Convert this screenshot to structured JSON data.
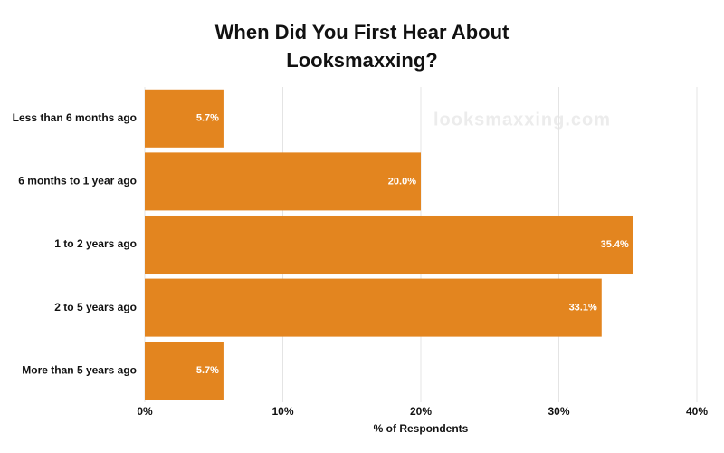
{
  "chart_data": {
    "type": "bar",
    "orientation": "horizontal",
    "title": "When Did You First Hear About Looksmaxxing?",
    "watermark": "looksmaxxing.com",
    "xlabel": "% of Respondents",
    "categories": [
      "Less than 6 months ago",
      "6 months to 1 year ago",
      "1 to 2 years ago",
      "2 to 5 years ago",
      "More than 5 years ago"
    ],
    "values": [
      5.7,
      20.0,
      35.4,
      33.1,
      5.7
    ],
    "value_labels": [
      "5.7%",
      "20.0%",
      "35.4%",
      "33.1%",
      "5.7%"
    ],
    "color": "#e3851f",
    "xlim": [
      0,
      40
    ],
    "xticks": [
      {
        "value": 0,
        "label": "0%"
      },
      {
        "value": 10,
        "label": "10%"
      },
      {
        "value": 20,
        "label": "20%"
      },
      {
        "value": 30,
        "label": "30%"
      },
      {
        "value": 40,
        "label": "40%"
      }
    ],
    "grid": true
  }
}
